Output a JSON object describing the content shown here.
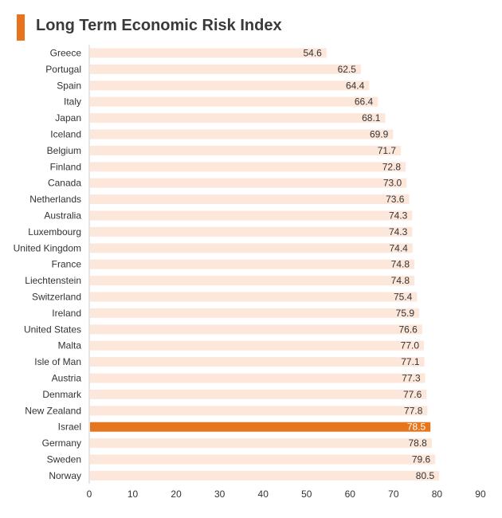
{
  "colors": {
    "accent": "#e8731c",
    "bar": "#fde7da",
    "highlight_bar": "#e6761e",
    "text": "#333333",
    "axis": "#cccccc"
  },
  "chart_data": {
    "type": "bar",
    "orientation": "horizontal",
    "title": "Long Term Economic Risk Index",
    "xlabel": "",
    "ylabel": "",
    "xlim": [
      0,
      90
    ],
    "xticks": [
      0,
      10,
      20,
      30,
      40,
      50,
      60,
      70,
      80,
      90
    ],
    "grid": false,
    "highlight": "Israel",
    "categories": [
      "Greece",
      "Portugal",
      "Spain",
      "Italy",
      "Japan",
      "Iceland",
      "Belgium",
      "Finland",
      "Canada",
      "Netherlands",
      "Australia",
      "Luxembourg",
      "United Kingdom",
      "France",
      "Liechtenstein",
      "Switzerland",
      "Ireland",
      "United States",
      "Malta",
      "Isle of Man",
      "Austria",
      "Denmark",
      "New Zealand",
      "Israel",
      "Germany",
      "Sweden",
      "Norway"
    ],
    "values": [
      54.6,
      62.5,
      64.4,
      66.4,
      68.1,
      69.9,
      71.7,
      72.8,
      73.0,
      73.6,
      74.3,
      74.3,
      74.4,
      74.8,
      74.8,
      75.4,
      75.9,
      76.6,
      77.0,
      77.1,
      77.3,
      77.6,
      77.8,
      78.5,
      78.8,
      79.6,
      80.5
    ],
    "value_labels": [
      "54.6",
      "62.5",
      "64.4",
      "66.4",
      "68.1",
      "69.9",
      "71.7",
      "72.8",
      "73.0",
      "73.6",
      "74.3",
      "74.3",
      "74.4",
      "74.8",
      "74.8",
      "75.4",
      "75.9",
      "76.6",
      "77.0",
      "77.1",
      "77.3",
      "77.6",
      "77.8",
      "78.5",
      "78.8",
      "79.6",
      "80.5"
    ]
  }
}
